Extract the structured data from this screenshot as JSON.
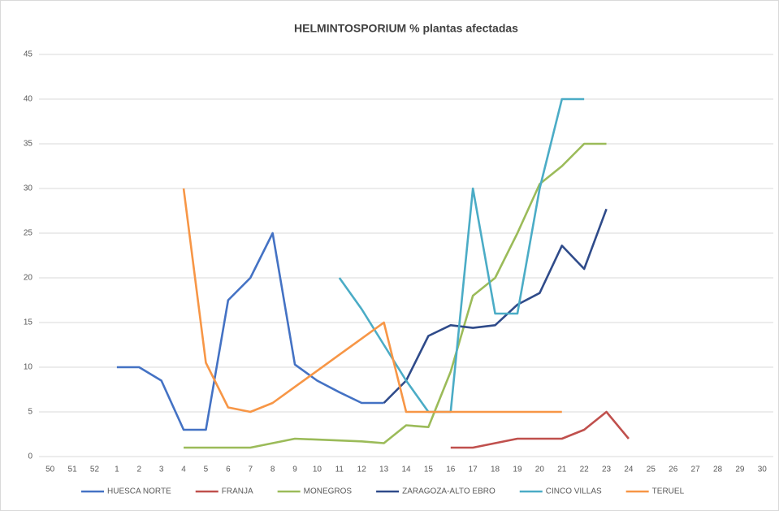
{
  "chart_data": {
    "type": "line",
    "title": "HELMINTOSPORIUM  % plantas  afectadas",
    "categories": [
      "50",
      "51",
      "52",
      "1",
      "2",
      "3",
      "4",
      "5",
      "6",
      "7",
      "8",
      "9",
      "10",
      "11",
      "12",
      "13",
      "14",
      "15",
      "16",
      "17",
      "18",
      "19",
      "20",
      "21",
      "22",
      "23",
      "24",
      "25",
      "26",
      "27",
      "28",
      "29",
      "30"
    ],
    "ylim": [
      0,
      45
    ],
    "yticks": [
      0,
      5,
      10,
      15,
      20,
      25,
      30,
      35,
      40,
      45
    ],
    "grid": true,
    "legend": "bottom",
    "series": [
      {
        "name": "HUESCA NORTE",
        "color": "#4472c4",
        "values": [
          null,
          null,
          null,
          10,
          10,
          8.5,
          3,
          3,
          17.5,
          20,
          25,
          10.3,
          8.5,
          7.2,
          6,
          6,
          null,
          null,
          null,
          null,
          null,
          null,
          null,
          null,
          null,
          null,
          null,
          null,
          null,
          null,
          null,
          null,
          null
        ]
      },
      {
        "name": "FRANJA",
        "color": "#c0504d",
        "values": [
          null,
          null,
          null,
          null,
          null,
          null,
          null,
          null,
          null,
          null,
          null,
          null,
          null,
          null,
          null,
          null,
          null,
          null,
          1,
          1,
          1.5,
          2,
          2,
          2,
          3,
          5,
          2,
          null,
          null,
          null,
          null,
          null,
          null
        ]
      },
      {
        "name": "MONEGROS",
        "color": "#9bbb59",
        "values": [
          null,
          null,
          null,
          null,
          null,
          null,
          1,
          1,
          1,
          1,
          1.5,
          2,
          1.9,
          1.8,
          1.7,
          1.5,
          3.5,
          3.3,
          9.5,
          18,
          20,
          25,
          30.5,
          32.5,
          35,
          35,
          null,
          null,
          null,
          null,
          null,
          null,
          null
        ]
      },
      {
        "name": "ZARAGOZA-ALTO EBRO",
        "color": "#2f4b8a",
        "values": [
          null,
          null,
          null,
          null,
          null,
          null,
          null,
          null,
          null,
          null,
          null,
          null,
          null,
          null,
          null,
          6,
          8.5,
          13.5,
          14.7,
          14.4,
          14.7,
          17,
          18.3,
          23.6,
          21,
          27.7,
          null,
          null,
          null,
          null,
          null,
          null,
          null
        ]
      },
      {
        "name": "CINCO VILLAS",
        "color": "#4bacc6",
        "values": [
          null,
          null,
          null,
          null,
          null,
          null,
          null,
          null,
          null,
          null,
          null,
          null,
          null,
          20,
          16.5,
          12.5,
          8.5,
          5,
          5,
          30,
          16,
          16,
          30,
          40,
          40,
          null,
          null,
          null,
          null,
          null,
          null,
          null,
          null
        ]
      },
      {
        "name": "TERUEL",
        "color": "#f79646",
        "values": [
          null,
          null,
          null,
          null,
          null,
          null,
          30,
          10.5,
          5.5,
          5,
          6,
          7.8,
          9.6,
          11.4,
          13.2,
          15,
          5,
          5,
          5,
          5,
          5,
          5,
          5,
          5,
          null,
          null,
          null,
          null,
          null,
          null,
          null,
          null,
          null
        ]
      }
    ]
  }
}
